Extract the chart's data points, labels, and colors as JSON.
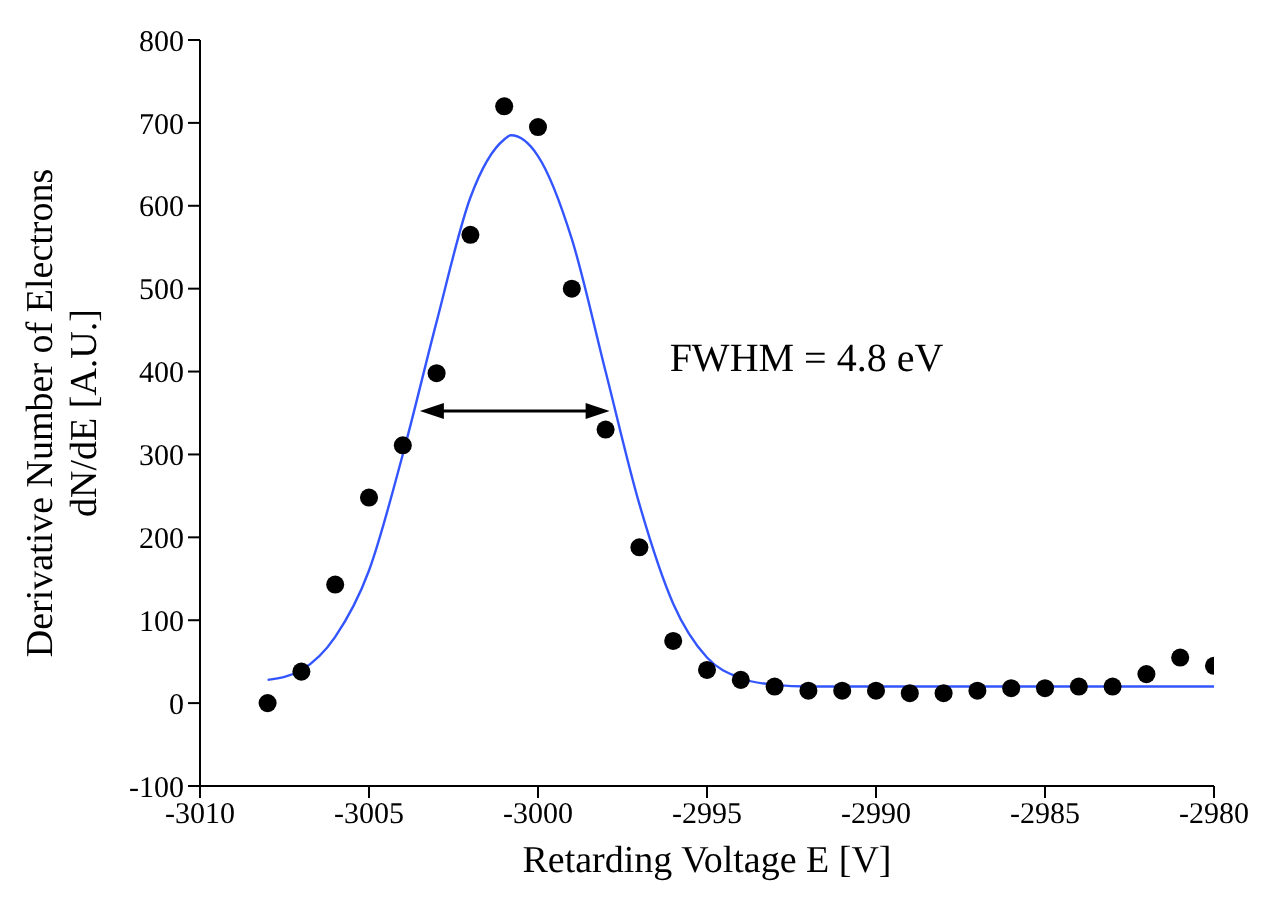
{
  "chart_data": {
    "type": "scatter",
    "xlabel": "Retarding Voltage E [V]",
    "ylabel": "Derivative Number of Electrons\ndN/dE [A.U.]",
    "annotations": [
      "FWHM = 4.8 eV"
    ],
    "xlim": [
      -3010,
      -2980
    ],
    "xticks": [
      -3010,
      -3005,
      -3000,
      -2995,
      -2990,
      -2985,
      -2980
    ],
    "ylim": [
      -100,
      800
    ],
    "yticks": [
      -100,
      0,
      100,
      200,
      300,
      400,
      500,
      600,
      700,
      800
    ],
    "grid": false,
    "legend": false,
    "marker": "circle",
    "series": [
      {
        "color": "#000000",
        "x": [
          -3008,
          -3007,
          -3006,
          -3005,
          -3004,
          -3003,
          -3002,
          -3001,
          -3000,
          -2999,
          -2998,
          -2997,
          -2996,
          -2995,
          -2994,
          -2993,
          -2992,
          -2991,
          -2990,
          -2989,
          -2988,
          -2987,
          -2986,
          -2985,
          -2984,
          -2983,
          -2982,
          -2981,
          -2980
        ],
        "values": [
          0,
          38,
          143,
          248,
          311,
          398,
          565,
          720,
          695,
          500,
          330,
          188,
          75,
          40,
          28,
          20,
          15,
          15,
          15,
          12,
          12,
          15,
          18,
          18,
          20,
          20,
          35,
          55,
          45
        ]
      },
      {
        "type": "line",
        "color": "#3355ff",
        "line_style": "solid",
        "marker": "none",
        "x": [
          -3008,
          -3007,
          -3006,
          -3005,
          -3004,
          -3003,
          -3002,
          -3001,
          -3000.8,
          -3000,
          -2999,
          -2998,
          -2997,
          -2996,
          -2995,
          -2994,
          -2993,
          -2992,
          -2980
        ],
        "values": [
          28,
          40,
          80,
          160,
          300,
          460,
          610,
          680,
          685,
          660,
          560,
          400,
          240,
          120,
          55,
          30,
          22,
          20,
          20
        ]
      }
    ]
  }
}
